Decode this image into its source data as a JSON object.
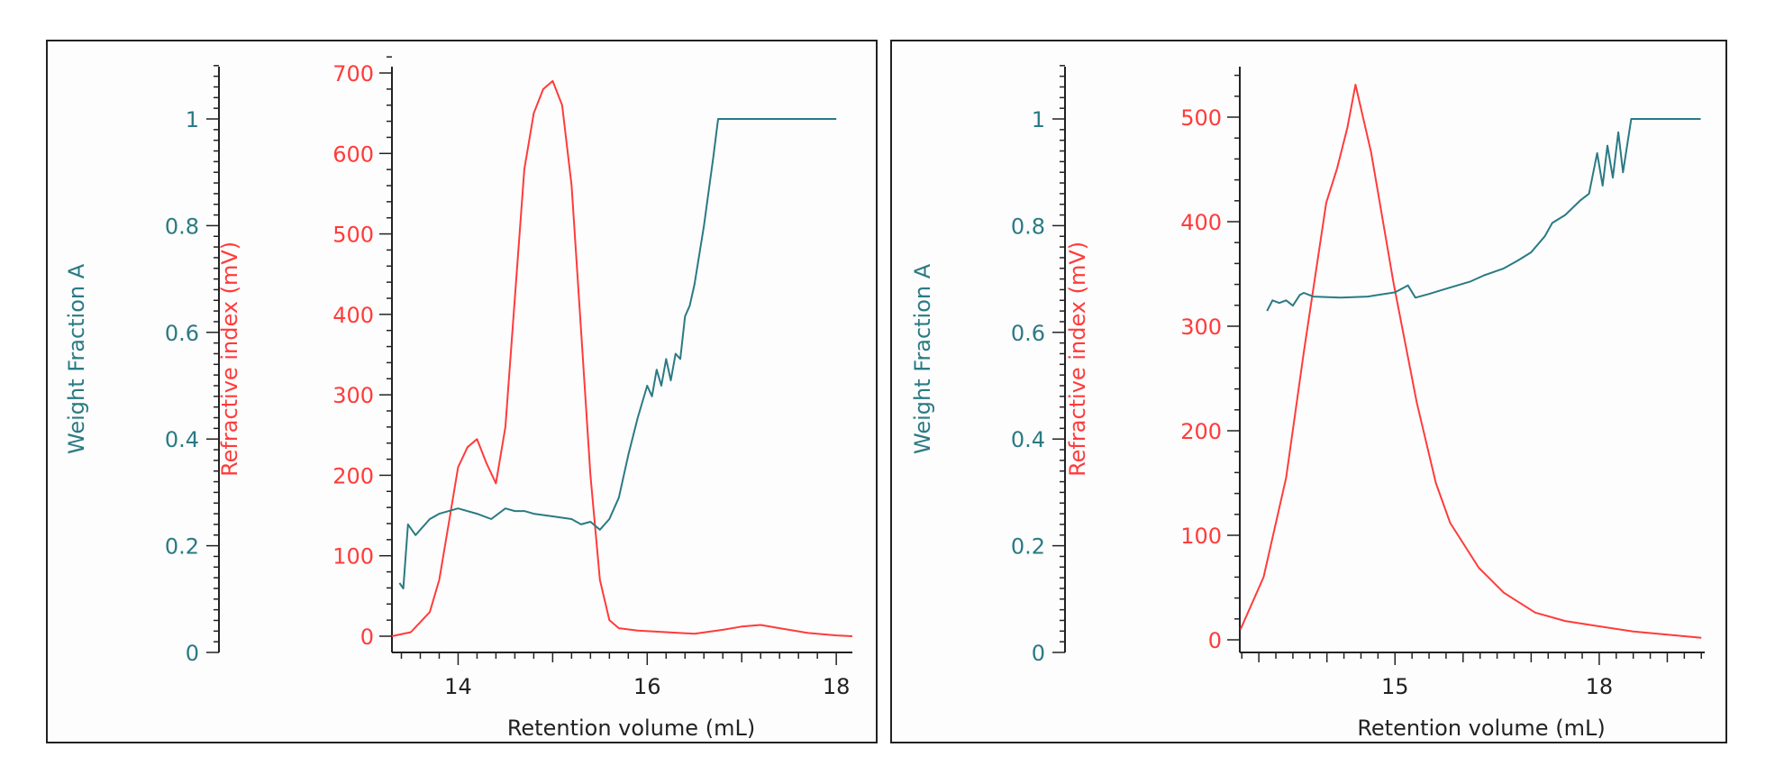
{
  "colors": {
    "weight_fraction": "#2a7a84",
    "refractive_index": "#ff3b3b",
    "axis": "#222222"
  },
  "chart_data": [
    {
      "type": "line",
      "xlabel": "Retention volume (mL)",
      "xlim": [
        13.3,
        18.17
      ],
      "x_ticks": [
        14,
        16,
        18
      ],
      "y_axes": [
        {
          "label": "Weight Fraction A",
          "lim": [
            0,
            1.1
          ],
          "ticks": [
            0,
            0.2,
            0.4,
            0.6,
            0.8,
            1
          ],
          "tick_labels": [
            "0",
            "0.2",
            "0.4",
            "0.6",
            "0.8",
            "1"
          ]
        },
        {
          "label": "Refractive index (mV)",
          "lim": [
            0,
            735
          ],
          "ticks": [
            0,
            100,
            200,
            300,
            400,
            500,
            600,
            700
          ],
          "tick_labels": [
            "0",
            "100",
            "200",
            "300",
            "400",
            "500",
            "600",
            "700"
          ]
        }
      ],
      "series": [
        {
          "axis": 1,
          "color": "refractive_index",
          "x": [
            13.3,
            13.5,
            13.7,
            13.8,
            13.9,
            14.0,
            14.1,
            14.2,
            14.3,
            14.4,
            14.5,
            14.6,
            14.7,
            14.8,
            14.9,
            15.0,
            15.1,
            15.2,
            15.3,
            15.4,
            15.5,
            15.6,
            15.7,
            15.9,
            16.2,
            16.5,
            16.8,
            17.0,
            17.2,
            17.4,
            17.7,
            18.0,
            18.17
          ],
          "y": [
            0,
            5,
            30,
            70,
            140,
            210,
            235,
            245,
            215,
            190,
            260,
            420,
            580,
            650,
            680,
            690,
            660,
            560,
            380,
            200,
            70,
            20,
            10,
            7,
            5,
            3,
            8,
            12,
            14,
            10,
            4,
            1,
            0
          ]
        },
        {
          "axis": 0,
          "color": "weight_fraction",
          "x": [
            13.38,
            13.42,
            13.47,
            13.55,
            13.6,
            13.7,
            13.8,
            14.0,
            14.2,
            14.35,
            14.5,
            14.6,
            14.7,
            14.8,
            15.0,
            15.2,
            15.3,
            15.4,
            15.5,
            15.6,
            15.7,
            15.8,
            15.9,
            16.0,
            16.05,
            16.1,
            16.15,
            16.2,
            16.25,
            16.3,
            16.35,
            16.4,
            16.45,
            16.5,
            16.6,
            16.7,
            16.75,
            17.0,
            18.0
          ],
          "y": [
            0.13,
            0.12,
            0.24,
            0.22,
            0.23,
            0.25,
            0.26,
            0.27,
            0.26,
            0.25,
            0.27,
            0.265,
            0.265,
            0.26,
            0.255,
            0.25,
            0.24,
            0.245,
            0.23,
            0.25,
            0.29,
            0.37,
            0.44,
            0.5,
            0.48,
            0.53,
            0.5,
            0.55,
            0.51,
            0.56,
            0.55,
            0.63,
            0.65,
            0.69,
            0.8,
            0.93,
            1.0,
            1.0,
            1.0
          ]
        }
      ]
    },
    {
      "type": "line",
      "xlabel": "Retention volume (mL)",
      "xlim": [
        12.72,
        19.55
      ],
      "x_ticks": [
        15,
        18
      ],
      "y_axes": [
        {
          "label": "Weight Fraction A",
          "lim": [
            0,
            1.1
          ],
          "ticks": [
            0,
            0.2,
            0.4,
            0.6,
            0.8,
            1
          ],
          "tick_labels": [
            "0",
            "0.2",
            "0.4",
            "0.6",
            "0.8",
            "1"
          ]
        },
        {
          "label": "Refractive index (mV)",
          "lim": [
            0,
            550
          ],
          "ticks": [
            0,
            100,
            200,
            300,
            400,
            500
          ],
          "tick_labels": [
            "0",
            "100",
            "200",
            "300",
            "400",
            "500"
          ]
        }
      ],
      "series": [
        {
          "axis": 1,
          "color": "refractive_index",
          "x": [
            12.73,
            13.07,
            13.4,
            13.66,
            13.99,
            14.15,
            14.3,
            14.42,
            14.65,
            14.98,
            15.32,
            15.6,
            15.81,
            16.23,
            16.6,
            17.06,
            17.5,
            17.89,
            18.5,
            19.5
          ],
          "y": [
            10,
            60,
            155,
            275,
            418,
            451,
            490,
            531,
            466,
            341,
            227,
            150,
            112,
            69,
            45,
            26,
            18,
            14,
            8,
            2
          ]
        },
        {
          "axis": 0,
          "color": "weight_fraction",
          "x": [
            13.12,
            13.2,
            13.3,
            13.4,
            13.5,
            13.6,
            13.66,
            13.8,
            14.2,
            14.6,
            15.0,
            15.19,
            15.3,
            15.5,
            15.81,
            16.1,
            16.31,
            16.6,
            16.81,
            17.0,
            17.2,
            17.31,
            17.5,
            17.72,
            17.85,
            17.97,
            18.05,
            18.12,
            18.2,
            18.28,
            18.35,
            18.47,
            19.49
          ],
          "y": [
            0.64,
            0.66,
            0.655,
            0.66,
            0.65,
            0.67,
            0.674,
            0.667,
            0.665,
            0.667,
            0.675,
            0.688,
            0.665,
            0.672,
            0.684,
            0.695,
            0.707,
            0.72,
            0.735,
            0.75,
            0.78,
            0.805,
            0.82,
            0.847,
            0.86,
            0.936,
            0.875,
            0.95,
            0.89,
            0.975,
            0.9,
            1.0,
            1.0
          ]
        }
      ]
    }
  ]
}
